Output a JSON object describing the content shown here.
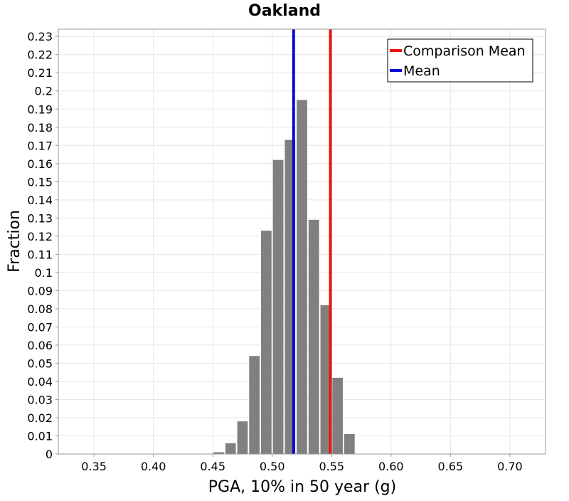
{
  "chart_data": {
    "type": "bar",
    "title": "Oakland",
    "xlabel": "PGA, 10% in 50 year (g)",
    "ylabel": "Fraction",
    "xlim": [
      0.32,
      0.73
    ],
    "ylim": [
      0,
      0.234
    ],
    "x_ticks": [
      "0.35",
      "0.40",
      "0.45",
      "0.50",
      "0.55",
      "0.60",
      "0.65",
      "0.70"
    ],
    "y_ticks": [
      "0",
      "0.01",
      "0.02",
      "0.03",
      "0.04",
      "0.05",
      "0.06",
      "0.07",
      "0.08",
      "0.09",
      "0.1",
      "0.11",
      "0.12",
      "0.13",
      "0.14",
      "0.15",
      "0.16",
      "0.17",
      "0.18",
      "0.19",
      "0.2",
      "0.21",
      "0.22",
      "0.23"
    ],
    "bin_width": 0.01,
    "bins": [
      {
        "center": 0.455,
        "value": 0.001
      },
      {
        "center": 0.465,
        "value": 0.006
      },
      {
        "center": 0.475,
        "value": 0.018
      },
      {
        "center": 0.485,
        "value": 0.054
      },
      {
        "center": 0.495,
        "value": 0.123
      },
      {
        "center": 0.505,
        "value": 0.162
      },
      {
        "center": 0.515,
        "value": 0.173
      },
      {
        "center": 0.525,
        "value": 0.195
      },
      {
        "center": 0.535,
        "value": 0.129
      },
      {
        "center": 0.545,
        "value": 0.082
      },
      {
        "center": 0.555,
        "value": 0.042
      },
      {
        "center": 0.565,
        "value": 0.011
      }
    ],
    "vlines": [
      {
        "name": "Comparison Mean",
        "x": 0.549,
        "color": "#ee1111"
      },
      {
        "name": "Mean",
        "x": 0.518,
        "color": "#0a0ad2"
      }
    ],
    "legend": {
      "position": "top-right",
      "entries": [
        {
          "label": "Comparison Mean",
          "color": "#ee1111"
        },
        {
          "label": "Mean",
          "color": "#0a0ad2"
        }
      ]
    },
    "bar_color": "#808080",
    "grid": true
  }
}
